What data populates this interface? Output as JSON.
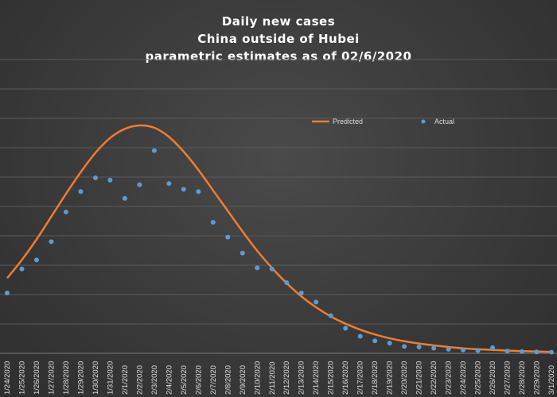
{
  "chart_data": {
    "type": "line",
    "title_lines": [
      "Daily new cases",
      "China  outside  of Hubei",
      "parametric  estimates  as of 02/6/2020"
    ],
    "categories": [
      "1/24/2020",
      "1/25/2020",
      "1/26/2020",
      "1/27/2020",
      "1/28/2020",
      "1/29/2020",
      "1/30/2020",
      "1/31/2020",
      "2/1/2020",
      "2/2/2020",
      "2/3/2020",
      "2/4/2020",
      "2/5/2020",
      "2/6/2020",
      "2/7/2020",
      "2/8/2020",
      "2/9/2020",
      "2/10/2020",
      "2/11/2020",
      "2/12/2020",
      "2/13/2020",
      "2/14/2020",
      "2/15/2020",
      "2/16/2020",
      "2/17/2020",
      "2/18/2020",
      "2/19/2020",
      "2/20/2020",
      "2/21/2020",
      "2/22/2020",
      "2/23/2020",
      "2/24/2020",
      "2/25/2020",
      "2/26/2020",
      "2/27/2020",
      "2/28/2020",
      "2/29/2020",
      "3/1/2020"
    ],
    "ylim": [
      0,
      1000
    ],
    "grid": true,
    "legend_position": "top-right",
    "series": [
      {
        "name": "Predicted",
        "kind": "line",
        "color": "#ED7D31",
        "values": [
          330,
          410,
          500,
          600,
          700,
          795,
          880,
          945,
          985,
          1000,
          990,
          950,
          885,
          805,
          715,
          625,
          535,
          450,
          375,
          308,
          250,
          202,
          162,
          130,
          104,
          83,
          66,
          53,
          43,
          35,
          28,
          22,
          18,
          15,
          12,
          10,
          8,
          6
        ]
      },
      {
        "name": "Actual",
        "kind": "scatter",
        "color": "#5B9BD5",
        "values": [
          265,
          370,
          410,
          490,
          620,
          710,
          770,
          760,
          680,
          740,
          890,
          745,
          720,
          710,
          575,
          510,
          440,
          375,
          370,
          310,
          265,
          225,
          165,
          110,
          75,
          55,
          45,
          30,
          28,
          22,
          18,
          15,
          12,
          25,
          10,
          8,
          6,
          5
        ]
      }
    ]
  }
}
